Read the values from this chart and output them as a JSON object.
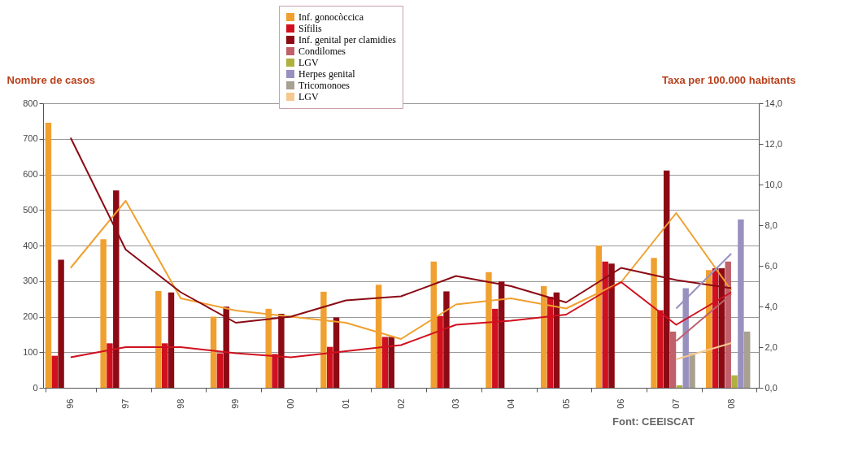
{
  "chart_data": {
    "type": "bar",
    "ylabel": "Nombre de casos",
    "y2label": "Taxa per 100.000 habitants",
    "categories": [
      "96",
      "97",
      "98",
      "99",
      "00",
      "01",
      "02",
      "03",
      "04",
      "05",
      "06",
      "07",
      "08"
    ],
    "ylim": [
      0,
      800
    ],
    "yticks": [
      0,
      100,
      200,
      300,
      400,
      500,
      600,
      700,
      800
    ],
    "y2lim": [
      0,
      14
    ],
    "y2ticks": [
      {
        "value": 0,
        "label": "0,0"
      },
      {
        "value": 2,
        "label": "2,0"
      },
      {
        "value": 4,
        "label": "4,0"
      },
      {
        "value": 6,
        "label": "6,0"
      },
      {
        "value": 8,
        "label": "8,0"
      },
      {
        "value": 10,
        "label": "10,0"
      },
      {
        "value": 12,
        "label": "12,0"
      },
      {
        "value": 14,
        "label": "14,0"
      }
    ],
    "grid": "y",
    "legend": "top",
    "annotations": [
      "Font: CEEISCAT"
    ],
    "series": [
      {
        "name": "Inf. gonocòccica",
        "color": "#f0a030",
        "values": [
          745,
          418,
          272,
          200,
          222,
          270,
          290,
          355,
          325,
          286,
          400,
          365,
          331
        ]
      },
      {
        "name": "Sífilis",
        "color": "#d0101e",
        "values": [
          90,
          125,
          125,
          97,
          95,
          115,
          143,
          202,
          222,
          256,
          355,
          218,
          336
        ]
      },
      {
        "name": "Inf. genital per clamidies",
        "color": "#8b0a14",
        "values": [
          360,
          555,
          268,
          228,
          208,
          198,
          143,
          271,
          299,
          268,
          349,
          611,
          336
        ]
      },
      {
        "name": "Condilomes",
        "color": "#c0606a",
        "values": [
          null,
          null,
          null,
          null,
          null,
          null,
          null,
          null,
          null,
          null,
          null,
          158,
          355
        ]
      },
      {
        "name": "LGV",
        "color": "#b0b040",
        "values": [
          null,
          null,
          null,
          null,
          null,
          null,
          null,
          null,
          null,
          null,
          null,
          7,
          35
        ]
      },
      {
        "name": "Herpes genital",
        "color": "#9a90c0",
        "values": [
          null,
          null,
          null,
          null,
          null,
          null,
          null,
          null,
          null,
          null,
          null,
          280,
          473
        ]
      },
      {
        "name": "Tricomonoes",
        "color": "#a8a090",
        "values": [
          null,
          null,
          null,
          null,
          null,
          null,
          null,
          null,
          null,
          null,
          null,
          97,
          158
        ]
      },
      {
        "name": "LGV",
        "color": "#f5c890",
        "values": [
          null,
          null,
          null,
          null,
          null,
          null,
          null,
          null,
          null,
          null,
          null,
          null,
          null
        ]
      },
      {
        "type": "line",
        "axis": "y2",
        "color": "#f0a030",
        "values": [
          5.9,
          9.2,
          4.4,
          3.8,
          3.5,
          3.2,
          2.4,
          4.1,
          4.4,
          3.9,
          5.2,
          8.6,
          4.8
        ]
      },
      {
        "type": "line",
        "axis": "y2",
        "color": "#d0101e",
        "values": [
          1.5,
          2.0,
          2.0,
          1.7,
          1.5,
          1.8,
          2.1,
          3.1,
          3.3,
          3.6,
          5.2,
          3.1,
          4.7
        ]
      },
      {
        "type": "line",
        "axis": "y2",
        "color": "#8b0a14",
        "values": [
          12.3,
          6.8,
          4.7,
          3.2,
          3.5,
          4.3,
          4.5,
          5.5,
          5.0,
          4.2,
          5.9,
          5.3,
          4.9
        ]
      },
      {
        "type": "line",
        "axis": "y2",
        "color": "#c0606a",
        "values": [
          null,
          null,
          null,
          null,
          null,
          null,
          null,
          null,
          null,
          null,
          null,
          2.3,
          4.6
        ]
      },
      {
        "type": "line",
        "axis": "y2",
        "color": "#9a90c0",
        "values": [
          null,
          null,
          null,
          null,
          null,
          null,
          null,
          null,
          null,
          null,
          null,
          3.9,
          6.6
        ]
      },
      {
        "type": "line",
        "axis": "y2",
        "color": "#f5c890",
        "values": [
          null,
          null,
          null,
          null,
          null,
          null,
          null,
          null,
          null,
          null,
          null,
          1.4,
          2.2
        ]
      }
    ]
  }
}
